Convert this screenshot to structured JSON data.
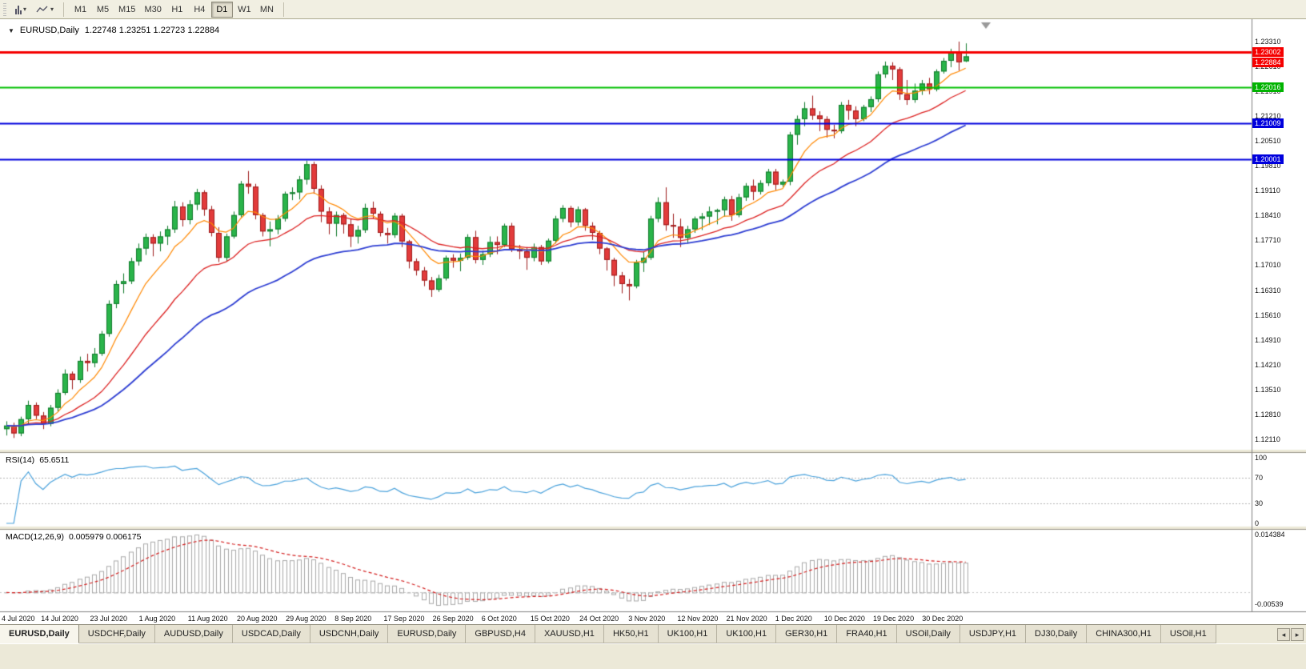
{
  "toolbar": {
    "timeframes": [
      "M1",
      "M5",
      "M15",
      "M30",
      "H1",
      "H4",
      "D1",
      "W1",
      "MN"
    ],
    "active_timeframe": "D1"
  },
  "chart": {
    "collapse_icon": "▼",
    "symbol": "EURUSD,Daily",
    "ohlc_text": "1.22748 1.23251 1.22723 1.22884"
  },
  "price_axis": {
    "labels": [
      "1.23310",
      "1.22610",
      "1.21910",
      "1.21210",
      "1.20510",
      "1.19810",
      "1.19110",
      "1.18410",
      "1.17710",
      "1.17010",
      "1.16310",
      "1.15610",
      "1.14910",
      "1.14210",
      "1.13510",
      "1.12810",
      "1.12110"
    ],
    "badges": [
      {
        "text": "1.23002",
        "price": 1.23002,
        "color": "#f50000"
      },
      {
        "text": "1.22884",
        "price": 1.22884,
        "color": "#f50000"
      },
      {
        "text": "1.22016",
        "price": 1.22016,
        "color": "#00b300"
      },
      {
        "text": "1.21009",
        "price": 1.21009,
        "color": "#0000dd"
      },
      {
        "text": "1.20001",
        "price": 1.20001,
        "color": "#0000dd"
      }
    ]
  },
  "rsi": {
    "name": "RSI(14)",
    "value": "65.6511",
    "levels": [
      "100",
      "70",
      "30",
      "0"
    ],
    "line_color": "#4aa2dc"
  },
  "macd": {
    "name": "MACD(12,26,9)",
    "values": "0.005979 0.006175",
    "axis_max": "0.014384",
    "axis_min": "-0.00539",
    "histogram_color": "#a9a9a9",
    "signal_color": "#d42020"
  },
  "date_axis": [
    "4 Jul 2020",
    "14 Jul 2020",
    "23 Jul 2020",
    "1 Aug 2020",
    "11 Aug 2020",
    "20 Aug 2020",
    "29 Aug 2020",
    "8 Sep 2020",
    "17 Sep 2020",
    "26 Sep 2020",
    "6 Oct 2020",
    "15 Oct 2020",
    "24 Oct 2020",
    "3 Nov 2020",
    "12 Nov 2020",
    "21 Nov 2020",
    "1 Dec 2020",
    "10 Dec 2020",
    "19 Dec 2020",
    "30 Dec 2020"
  ],
  "tabbar": {
    "tabs": [
      "EURUSD,Daily",
      "USDCHF,Daily",
      "AUDUSD,Daily",
      "USDCAD,Daily",
      "USDCNH,Daily",
      "EURUSD,Daily",
      "GBPUSD,H4",
      "XAUUSD,H1",
      "HK50,H1",
      "UK100,H1",
      "UK100,H1",
      "GER30,H1",
      "FRA40,H1",
      "USOil,Daily",
      "USDJPY,H1",
      "DJ30,Daily",
      "CHINA300,H1",
      "USOil,H1"
    ],
    "active_index": 0,
    "scroll_left_icon": "◂",
    "scroll_right_icon": "▸"
  },
  "chart_data": {
    "type": "candlestick",
    "title": "EURUSD,Daily",
    "symbol": "EURUSD",
    "timeframe": "Daily",
    "last_ohlc": {
      "open": 1.22748,
      "high": 1.23251,
      "low": 1.22723,
      "close": 1.22884
    },
    "y_axis": {
      "max": 1.2375,
      "min": 1.12
    },
    "colors": {
      "up_fill": "#2ab44a",
      "up_border": "#117a2c",
      "down_fill": "#e23b3b",
      "down_border": "#9e1b1b"
    },
    "moving_averages": [
      {
        "period": 8,
        "color": "#ff8800",
        "width": 1.2
      },
      {
        "period": 20,
        "color": "#dd2222",
        "width": 1.3
      },
      {
        "period": 40,
        "color": "#2f3fd3",
        "width": 1.8
      }
    ],
    "hlines": [
      {
        "price": 1.23002,
        "color": "#f50000",
        "width": 3
      },
      {
        "price": 1.22016,
        "color": "#00c000",
        "width": 2
      },
      {
        "price": 1.21009,
        "color": "#0000dd",
        "width": 2
      },
      {
        "price": 1.20001,
        "color": "#0000dd",
        "width": 2
      }
    ],
    "indicators": [
      {
        "name": "RSI",
        "period": 14,
        "last_value": 65.6511
      },
      {
        "name": "MACD",
        "fast": 12,
        "slow": 26,
        "signal": 9,
        "last_main": 0.005979,
        "last_signal": 0.006175
      }
    ],
    "candles": [
      [
        1.124,
        1.1262,
        1.1222,
        1.125
      ],
      [
        1.125,
        1.1258,
        1.1215,
        1.1228
      ],
      [
        1.1228,
        1.1275,
        1.122,
        1.1268
      ],
      [
        1.1268,
        1.132,
        1.1255,
        1.1308
      ],
      [
        1.1308,
        1.1315,
        1.1268,
        1.1278
      ],
      [
        1.1278,
        1.1288,
        1.124,
        1.1255
      ],
      [
        1.1255,
        1.1308,
        1.1248,
        1.13
      ],
      [
        1.13,
        1.1352,
        1.129,
        1.1342
      ],
      [
        1.1342,
        1.1408,
        1.1336,
        1.1396
      ],
      [
        1.1396,
        1.1402,
        1.1352,
        1.1378
      ],
      [
        1.1378,
        1.1444,
        1.137,
        1.1432
      ],
      [
        1.1432,
        1.1452,
        1.1402,
        1.1426
      ],
      [
        1.1426,
        1.1468,
        1.1414,
        1.1452
      ],
      [
        1.1452,
        1.1516,
        1.1446,
        1.1508
      ],
      [
        1.1508,
        1.1602,
        1.15,
        1.1592
      ],
      [
        1.1592,
        1.1658,
        1.158,
        1.1648
      ],
      [
        1.1648,
        1.1678,
        1.1622,
        1.1656
      ],
      [
        1.1656,
        1.1722,
        1.1648,
        1.1712
      ],
      [
        1.1712,
        1.1762,
        1.17,
        1.1748
      ],
      [
        1.1748,
        1.179,
        1.173,
        1.178
      ],
      [
        1.178,
        1.1788,
        1.1726,
        1.1762
      ],
      [
        1.1762,
        1.1796,
        1.174,
        1.1782
      ],
      [
        1.1782,
        1.1812,
        1.1758,
        1.1802
      ],
      [
        1.1802,
        1.1882,
        1.1792,
        1.1866
      ],
      [
        1.1866,
        1.1878,
        1.181,
        1.1828
      ],
      [
        1.1828,
        1.1884,
        1.1816,
        1.1872
      ],
      [
        1.1872,
        1.1916,
        1.1856,
        1.1906
      ],
      [
        1.1906,
        1.1912,
        1.184,
        1.1858
      ],
      [
        1.1858,
        1.1868,
        1.1782,
        1.1792
      ],
      [
        1.1792,
        1.1808,
        1.171,
        1.1722
      ],
      [
        1.1722,
        1.179,
        1.1712,
        1.1782
      ],
      [
        1.1782,
        1.1852,
        1.1776,
        1.1842
      ],
      [
        1.1842,
        1.1938,
        1.1836,
        1.193
      ],
      [
        1.193,
        1.1966,
        1.1902,
        1.1922
      ],
      [
        1.1922,
        1.193,
        1.183,
        1.1842
      ],
      [
        1.1842,
        1.1848,
        1.1782,
        1.1796
      ],
      [
        1.1796,
        1.1824,
        1.1754,
        1.1802
      ],
      [
        1.1802,
        1.1842,
        1.1788,
        1.1832
      ],
      [
        1.1832,
        1.1908,
        1.1824,
        1.1902
      ],
      [
        1.1902,
        1.192,
        1.1884,
        1.1906
      ],
      [
        1.1906,
        1.1952,
        1.1886,
        1.1942
      ],
      [
        1.1942,
        1.1995,
        1.1928,
        1.1985
      ],
      [
        1.1985,
        1.1992,
        1.1902,
        1.1916
      ],
      [
        1.1916,
        1.1926,
        1.1822,
        1.1852
      ],
      [
        1.1852,
        1.1864,
        1.1788,
        1.1818
      ],
      [
        1.1818,
        1.1852,
        1.1782,
        1.1842
      ],
      [
        1.1842,
        1.1848,
        1.179,
        1.1816
      ],
      [
        1.1816,
        1.1832,
        1.1752,
        1.1782
      ],
      [
        1.1782,
        1.1812,
        1.1762,
        1.18
      ],
      [
        1.18,
        1.1874,
        1.1792,
        1.1862
      ],
      [
        1.1862,
        1.188,
        1.1832,
        1.1846
      ],
      [
        1.1846,
        1.1852,
        1.1782,
        1.1792
      ],
      [
        1.1792,
        1.1806,
        1.1762,
        1.1786
      ],
      [
        1.1786,
        1.1848,
        1.1778,
        1.184
      ],
      [
        1.184,
        1.1846,
        1.1752,
        1.1768
      ],
      [
        1.1768,
        1.1772,
        1.1692,
        1.1712
      ],
      [
        1.1712,
        1.172,
        1.1672,
        1.1686
      ],
      [
        1.1686,
        1.1696,
        1.1642,
        1.1658
      ],
      [
        1.1658,
        1.1668,
        1.1612,
        1.1632
      ],
      [
        1.1632,
        1.1674,
        1.1626,
        1.1664
      ],
      [
        1.1664,
        1.1728,
        1.1658,
        1.1722
      ],
      [
        1.1722,
        1.1732,
        1.1694,
        1.1714
      ],
      [
        1.1714,
        1.1734,
        1.1684,
        1.1722
      ],
      [
        1.1722,
        1.1788,
        1.1716,
        1.178
      ],
      [
        1.178,
        1.1798,
        1.1706,
        1.1716
      ],
      [
        1.1716,
        1.1742,
        1.1702,
        1.1732
      ],
      [
        1.1732,
        1.1782,
        1.1724,
        1.1766
      ],
      [
        1.1766,
        1.1782,
        1.1732,
        1.1758
      ],
      [
        1.1758,
        1.1818,
        1.1752,
        1.1812
      ],
      [
        1.1812,
        1.182,
        1.1738,
        1.1746
      ],
      [
        1.1746,
        1.1758,
        1.1718,
        1.174
      ],
      [
        1.174,
        1.1752,
        1.1688,
        1.1722
      ],
      [
        1.1722,
        1.1762,
        1.1712,
        1.1752
      ],
      [
        1.1752,
        1.1758,
        1.1702,
        1.1712
      ],
      [
        1.1712,
        1.1776,
        1.1706,
        1.177
      ],
      [
        1.177,
        1.184,
        1.1762,
        1.1832
      ],
      [
        1.1832,
        1.187,
        1.1822,
        1.1862
      ],
      [
        1.1862,
        1.1868,
        1.1808,
        1.1822
      ],
      [
        1.1822,
        1.1866,
        1.1812,
        1.1858
      ],
      [
        1.1858,
        1.1862,
        1.1798,
        1.1812
      ],
      [
        1.1812,
        1.1822,
        1.1772,
        1.1792
      ],
      [
        1.1792,
        1.1798,
        1.1732,
        1.1748
      ],
      [
        1.1748,
        1.1752,
        1.1686,
        1.1716
      ],
      [
        1.1716,
        1.1722,
        1.1642,
        1.1672
      ],
      [
        1.1672,
        1.1682,
        1.1622,
        1.1648
      ],
      [
        1.1648,
        1.1662,
        1.1602,
        1.1642
      ],
      [
        1.1642,
        1.1716,
        1.1636,
        1.1708
      ],
      [
        1.1708,
        1.174,
        1.1682,
        1.1722
      ],
      [
        1.1722,
        1.184,
        1.1716,
        1.1832
      ],
      [
        1.1832,
        1.1892,
        1.1822,
        1.1878
      ],
      [
        1.1878,
        1.192,
        1.1798,
        1.1814
      ],
      [
        1.1814,
        1.1846,
        1.1778,
        1.181
      ],
      [
        1.181,
        1.1832,
        1.1752,
        1.1778
      ],
      [
        1.1778,
        1.1812,
        1.1762,
        1.1802
      ],
      [
        1.1802,
        1.1838,
        1.1792,
        1.1832
      ],
      [
        1.1832,
        1.1848,
        1.18,
        1.1838
      ],
      [
        1.1838,
        1.1866,
        1.1814,
        1.1852
      ],
      [
        1.1852,
        1.186,
        1.1816,
        1.1856
      ],
      [
        1.1856,
        1.1894,
        1.1838,
        1.1886
      ],
      [
        1.1886,
        1.1896,
        1.1826,
        1.1842
      ],
      [
        1.1842,
        1.1902,
        1.1836,
        1.1892
      ],
      [
        1.1892,
        1.1932,
        1.1882,
        1.1924
      ],
      [
        1.1924,
        1.1942,
        1.1884,
        1.1908
      ],
      [
        1.1908,
        1.194,
        1.19,
        1.1932
      ],
      [
        1.1932,
        1.1972,
        1.1924,
        1.1964
      ],
      [
        1.1964,
        1.1972,
        1.1912,
        1.1928
      ],
      [
        1.1928,
        1.1942,
        1.1922,
        1.1936
      ],
      [
        1.1936,
        1.2076,
        1.1926,
        1.2068
      ],
      [
        1.2068,
        1.2122,
        1.204,
        1.2112
      ],
      [
        1.2112,
        1.216,
        1.2092,
        1.2142
      ],
      [
        1.2142,
        1.2178,
        1.211,
        1.2122
      ],
      [
        1.2122,
        1.2134,
        1.2078,
        1.2112
      ],
      [
        1.2112,
        1.212,
        1.206,
        1.2082
      ],
      [
        1.2082,
        1.2096,
        1.2058,
        1.2078
      ],
      [
        1.2078,
        1.216,
        1.2072,
        1.2152
      ],
      [
        1.2152,
        1.2166,
        1.211,
        1.2136
      ],
      [
        1.2136,
        1.2148,
        1.2092,
        1.2112
      ],
      [
        1.2112,
        1.2152,
        1.2106,
        1.2146
      ],
      [
        1.2146,
        1.2176,
        1.2132,
        1.2168
      ],
      [
        1.2168,
        1.2246,
        1.216,
        1.2238
      ],
      [
        1.2238,
        1.2274,
        1.2228,
        1.2262
      ],
      [
        1.2262,
        1.2272,
        1.2222,
        1.2252
      ],
      [
        1.2252,
        1.2258,
        1.2166,
        1.2182
      ],
      [
        1.2182,
        1.2222,
        1.2152,
        1.2166
      ],
      [
        1.2166,
        1.2212,
        1.2158,
        1.2192
      ],
      [
        1.2192,
        1.2222,
        1.218,
        1.2212
      ],
      [
        1.2212,
        1.2228,
        1.2182,
        1.2196
      ],
      [
        1.2196,
        1.2252,
        1.219,
        1.2246
      ],
      [
        1.2246,
        1.2284,
        1.224,
        1.2276
      ],
      [
        1.2276,
        1.231,
        1.2258,
        1.23
      ],
      [
        1.23,
        1.233,
        1.2248,
        1.2272
      ],
      [
        1.22748,
        1.23251,
        1.22723,
        1.22884
      ]
    ]
  }
}
